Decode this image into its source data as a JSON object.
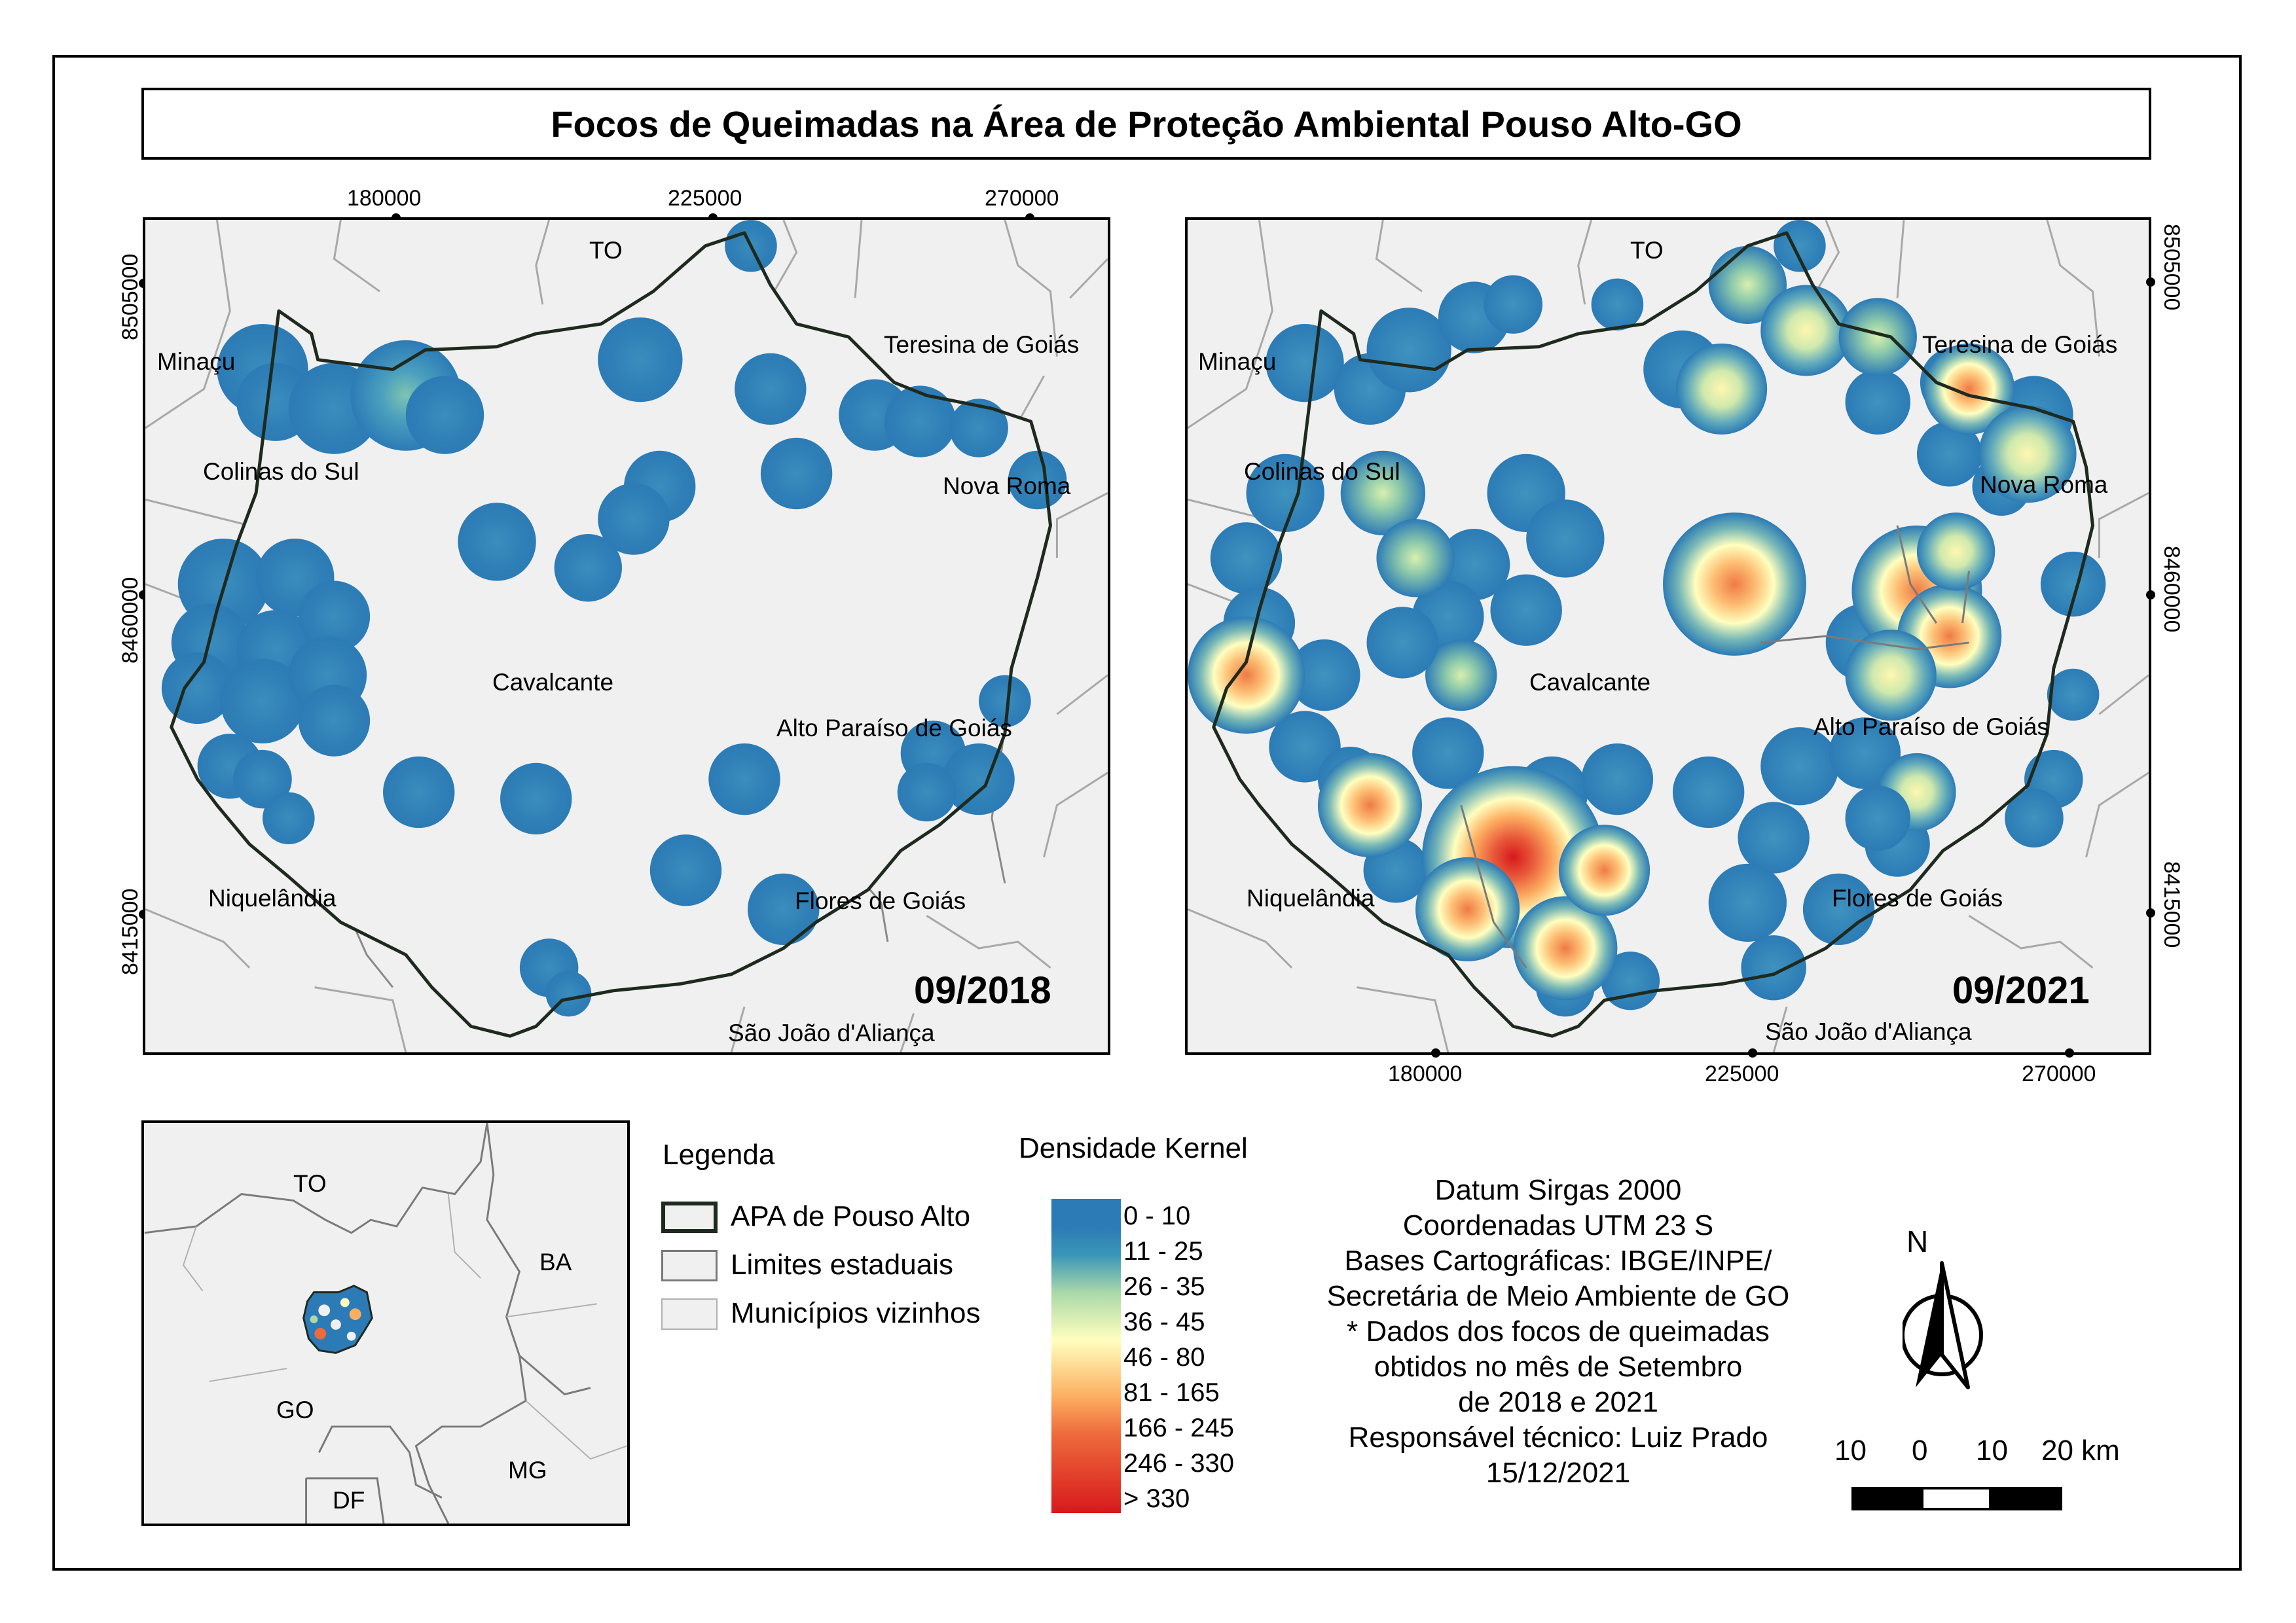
{
  "title": "Focos de Queimadas na Área de Proteção Ambiental Pouso Alto-GO",
  "colors": {
    "map_background": "#f0f0f0",
    "apa_boundary": "#1f2a1f",
    "municipal_lines": "#a8a8a8",
    "state_lines": "#7a7a7a",
    "kernel_low": "#2c7bb6",
    "kernel_mid": "#ffffbf",
    "kernel_high": "#d7191c"
  },
  "map_left": {
    "date": "09/2018",
    "x_ticks": [
      "180000",
      "225000",
      "270000"
    ],
    "y_ticks": [
      "8505000",
      "8460000",
      "8415000"
    ],
    "labels": {
      "to": "TO",
      "minacu": "Minaçu",
      "teresina": "Teresina de Goiás",
      "colinas": "Colinas do Sul",
      "nova_roma": "Nova Roma",
      "cavalcante": "Cavalcante",
      "alto_paraiso": "Alto Paraíso de Goiás",
      "niquelandia": "Niquelândia",
      "flores": "Flores de Goiás",
      "sao_joao": "São João d'Aliança"
    }
  },
  "map_right": {
    "date": "09/2021",
    "x_ticks": [
      "180000",
      "225000",
      "270000"
    ],
    "y_ticks": [
      "8505000",
      "8460000",
      "8415000"
    ],
    "labels": {
      "to": "TO",
      "minacu": "Minaçu",
      "teresina": "Teresina de Goiás",
      "colinas": "Colinas do Sul",
      "nova_roma": "Nova Roma",
      "cavalcante": "Cavalcante",
      "alto_paraiso": "Alto Paraíso de Goiás",
      "niquelandia": "Niquelândia",
      "flores": "Flores de Goiás",
      "sao_joao": "São João d'Aliança"
    }
  },
  "inset": {
    "labels": {
      "to": "TO",
      "ba": "BA",
      "go": "GO",
      "mg": "MG",
      "df": "DF"
    }
  },
  "legend": {
    "title": "Legenda",
    "items": [
      "APA de Pouso Alto",
      "Limites estaduais",
      "Municípios vizinhos"
    ]
  },
  "kernel": {
    "title": "Densidade Kernel",
    "classes": [
      "0 - 10",
      "11 - 25",
      "26 - 35",
      "36 - 45",
      "46 - 80",
      "81 - 165",
      "166 - 245",
      "246 - 330",
      "> 330"
    ]
  },
  "notes": [
    "Datum Sirgas 2000",
    "Coordenadas UTM 23 S",
    "Bases Cartográficas: IBGE/INPE/",
    "Secretária de Meio Ambiente de GO",
    "* Dados dos focos de queimadas",
    "obtidos no mês de Setembro",
    "de 2018 e 2021",
    "Responsável técnico: Luiz Prado",
    "15/12/2021"
  ],
  "north_arrow": {
    "label": "N"
  },
  "scale_bar": {
    "labels": [
      "10",
      "0",
      "10",
      "20 km"
    ]
  }
}
